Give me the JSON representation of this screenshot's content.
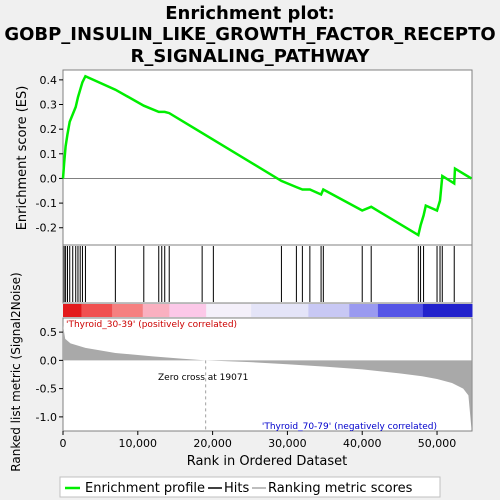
{
  "title_line1": "Enrichment plot:",
  "title_line2": "GOBP_INSULIN_LIKE_GROWTH_FACTOR_RECEPTO",
  "title_line3": "R_SIGNALING_PATHWAY",
  "es_ylabel": "Enrichment score (ES)",
  "metric_ylabel": "Ranked list metric (Signal2Noise)",
  "xlabel": "Rank in Ordered Dataset",
  "pos_label": "'Thyroid_30-39' (positively correlated)",
  "neg_label": "'Thyroid_70-79' (negatively correlated)",
  "zero_cross_label": "Zero cross at 19071",
  "legend": {
    "enrichment_label": "Enrichment profile",
    "hits_label": "Hits",
    "ranking_label": "Ranking metric scores"
  },
  "colors": {
    "enrichment_line": "#00ee00",
    "hits": "#000000",
    "ranking_fill": "#a9a9a9",
    "pos_text": "#cc0000",
    "neg_text": "#0000cc"
  },
  "chart_data": {
    "type": "line",
    "x_total": 54675,
    "zero_cross": 19071,
    "es_ylim": [
      -0.27,
      0.44
    ],
    "es_yticks": [
      -0.2,
      -0.1,
      0.0,
      0.1,
      0.2,
      0.3,
      0.4
    ],
    "es_ytick_labels": [
      "-0.2",
      "-0.1",
      "0.0",
      "0.1",
      "0.2",
      "0.3",
      "0.4"
    ],
    "metric_ylim": [
      -1.25,
      0.75
    ],
    "metric_yticks": [
      -1.0,
      -0.5,
      0.0,
      0.5
    ],
    "metric_ytick_labels": [
      "-1.0",
      "-0.5",
      "0.0",
      "0.5"
    ],
    "xticks": [
      0,
      10000,
      20000,
      30000,
      40000,
      50000
    ],
    "xtick_labels": [
      "0",
      "10,000",
      "20,000",
      "30,000",
      "40,000",
      "50,000"
    ],
    "hits": [
      150,
      350,
      600,
      900,
      1300,
      1700,
      2000,
      2300,
      2600,
      3000,
      7000,
      10800,
      12800,
      13200,
      13600,
      14200,
      18600,
      20100,
      29200,
      31200,
      32000,
      33000,
      34500,
      34800,
      40000,
      41200,
      47500,
      47800,
      48200,
      50000,
      50400,
      50700,
      52300
    ],
    "es_curve": [
      [
        0,
        0.0
      ],
      [
        150,
        0.06
      ],
      [
        350,
        0.13
      ],
      [
        600,
        0.18
      ],
      [
        900,
        0.23
      ],
      [
        1300,
        0.26
      ],
      [
        1700,
        0.29
      ],
      [
        2000,
        0.33
      ],
      [
        2300,
        0.36
      ],
      [
        2600,
        0.39
      ],
      [
        3000,
        0.415
      ],
      [
        7000,
        0.36
      ],
      [
        10800,
        0.295
      ],
      [
        12800,
        0.27
      ],
      [
        13200,
        0.27
      ],
      [
        13600,
        0.27
      ],
      [
        14200,
        0.265
      ],
      [
        29200,
        -0.01
      ],
      [
        31200,
        -0.035
      ],
      [
        32000,
        -0.045
      ],
      [
        33000,
        -0.045
      ],
      [
        34500,
        -0.065
      ],
      [
        34800,
        -0.045
      ],
      [
        40000,
        -0.13
      ],
      [
        41200,
        -0.115
      ],
      [
        47500,
        -0.23
      ],
      [
        47800,
        -0.19
      ],
      [
        48200,
        -0.15
      ],
      [
        48500,
        -0.11
      ],
      [
        50000,
        -0.13
      ],
      [
        50400,
        -0.09
      ],
      [
        50700,
        0.01
      ],
      [
        52300,
        -0.02
      ],
      [
        52400,
        0.04
      ],
      [
        54600,
        0.0
      ]
    ],
    "metric_curve": [
      [
        0,
        0.62
      ],
      [
        300,
        0.38
      ],
      [
        1000,
        0.3
      ],
      [
        3000,
        0.22
      ],
      [
        7000,
        0.13
      ],
      [
        12000,
        0.07
      ],
      [
        16000,
        0.03
      ],
      [
        19071,
        0.0
      ],
      [
        25000,
        -0.03
      ],
      [
        30000,
        -0.07
      ],
      [
        35000,
        -0.11
      ],
      [
        40000,
        -0.16
      ],
      [
        45000,
        -0.23
      ],
      [
        48000,
        -0.28
      ],
      [
        50000,
        -0.33
      ],
      [
        52000,
        -0.4
      ],
      [
        53500,
        -0.5
      ],
      [
        54200,
        -0.62
      ],
      [
        54600,
        -1.2
      ]
    ]
  }
}
